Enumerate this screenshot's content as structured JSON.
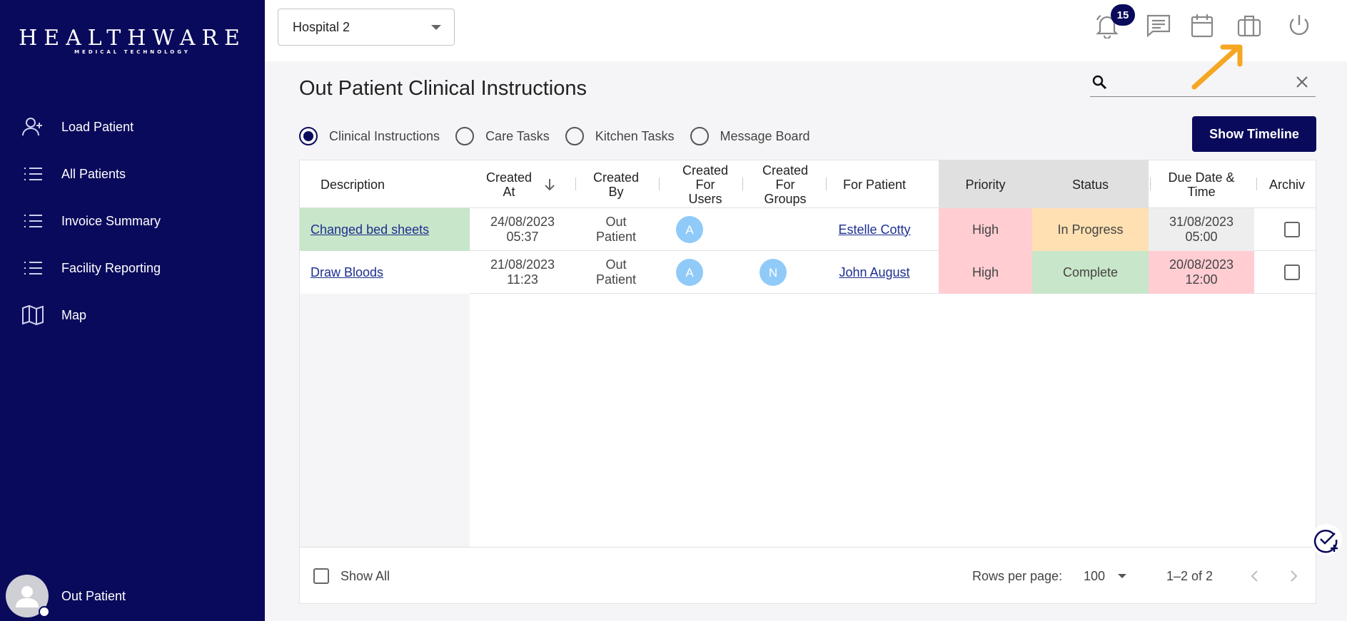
{
  "sidebar": {
    "logo_main": "HEALTHWARE",
    "logo_sub": "MEDICAL TECHNOLOGY",
    "items": [
      {
        "label": "Load Patient",
        "icon": "person-add-icon"
      },
      {
        "label": "All Patients",
        "icon": "list-icon"
      },
      {
        "label": "Invoice Summary",
        "icon": "list-icon"
      },
      {
        "label": "Facility Reporting",
        "icon": "list-icon"
      },
      {
        "label": "Map",
        "icon": "map-icon"
      }
    ],
    "user_name": "Out Patient"
  },
  "topbar": {
    "hospital": "Hospital 2",
    "notification_count": "15",
    "icons": [
      "bell-icon",
      "message-icon",
      "calendar-icon",
      "briefcase-icon",
      "power-icon"
    ]
  },
  "page": {
    "title": "Out Patient Clinical Instructions",
    "search_placeholder": "",
    "show_timeline_label": "Show Timeline",
    "radios": [
      {
        "label": "Clinical Instructions",
        "selected": true
      },
      {
        "label": "Care Tasks",
        "selected": false
      },
      {
        "label": "Kitchen Tasks",
        "selected": false
      },
      {
        "label": "Message Board",
        "selected": false
      }
    ]
  },
  "table": {
    "headers": {
      "description": "Description",
      "created_at_1": "Created",
      "created_at_2": "At",
      "created_by_1": "Created",
      "created_by_2": "By",
      "for_users_1": "Created",
      "for_users_2": "For",
      "for_users_3": "Users",
      "for_groups_1": "Created",
      "for_groups_2": "For",
      "for_groups_3": "Groups",
      "for_patient": "For Patient",
      "priority": "Priority",
      "status": "Status",
      "due_1": "Due Date &",
      "due_2": "Time",
      "archive": "Archiv"
    },
    "rows": [
      {
        "description": "Changed bed sheets",
        "created_date": "24/08/2023",
        "created_time": "05:37",
        "created_by_1": "Out",
        "created_by_2": "Patient",
        "user_initial": "A",
        "group_initial": "",
        "patient": "Estelle Cotty",
        "priority": "High",
        "status": "In Progress",
        "due_date": "31/08/2023",
        "due_time": "05:00"
      },
      {
        "description": "Draw Bloods",
        "created_date": "21/08/2023",
        "created_time": "11:23",
        "created_by_1": "Out",
        "created_by_2": "Patient",
        "user_initial": "A",
        "group_initial": "N",
        "patient": "John August",
        "priority": "High",
        "status": "Complete",
        "due_date": "20/08/2023",
        "due_time": "12:00"
      }
    ],
    "footer": {
      "show_all": "Show All",
      "rows_per_page_label": "Rows per page:",
      "rows_per_page_value": "100",
      "range": "1–2 of 2"
    }
  },
  "colors": {
    "brand": "#0a0a5c",
    "accent_arrow": "#f5a623",
    "row1_desc_bg": "#c8e6c9",
    "priority_high_bg": "#ffcdd2",
    "status_inprogress_bg": "#ffe0b2",
    "status_complete_bg": "#c8e6c9",
    "due_normal_bg": "#eeeeee",
    "due_overdue_bg": "#ffcdd2",
    "header_shaded_bg": "#e0e0e0"
  }
}
